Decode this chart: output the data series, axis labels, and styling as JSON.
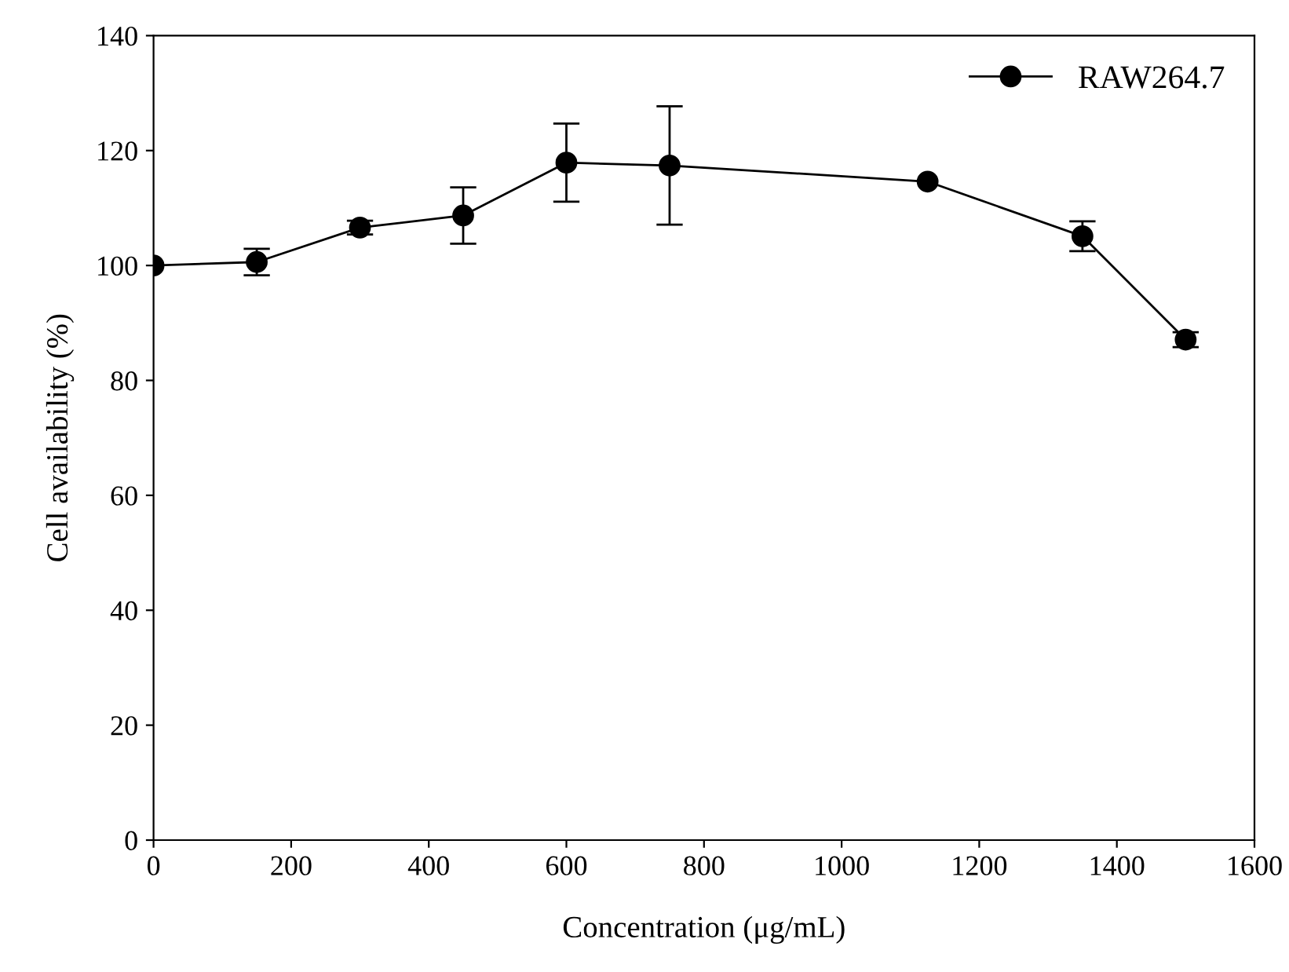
{
  "chart_data": {
    "type": "line",
    "xlabel": "Concentration (μg/mL)",
    "ylabel": "Cell availability (%)",
    "x": [
      0,
      150,
      300,
      450,
      600,
      750,
      1125,
      1350,
      1500
    ],
    "series": [
      {
        "name": "RAW264.7",
        "color": "#000000",
        "values": [
          100,
          100.6,
          106.6,
          108.7,
          117.9,
          117.4,
          114.6,
          105.1,
          87.1
        ],
        "errors": [
          null,
          2.3,
          1.2,
          4.9,
          6.8,
          10.3,
          null,
          2.6,
          1.3
        ]
      }
    ],
    "xlim": [
      0,
      1600
    ],
    "xticks": [
      0,
      200,
      400,
      600,
      800,
      1000,
      1200,
      1400,
      1600
    ],
    "ylim": [
      0,
      140
    ],
    "yticks": [
      0,
      20,
      40,
      60,
      80,
      100,
      120,
      140
    ],
    "marker": "circle",
    "line_style": "solid",
    "grid": false,
    "legend": "top right"
  }
}
